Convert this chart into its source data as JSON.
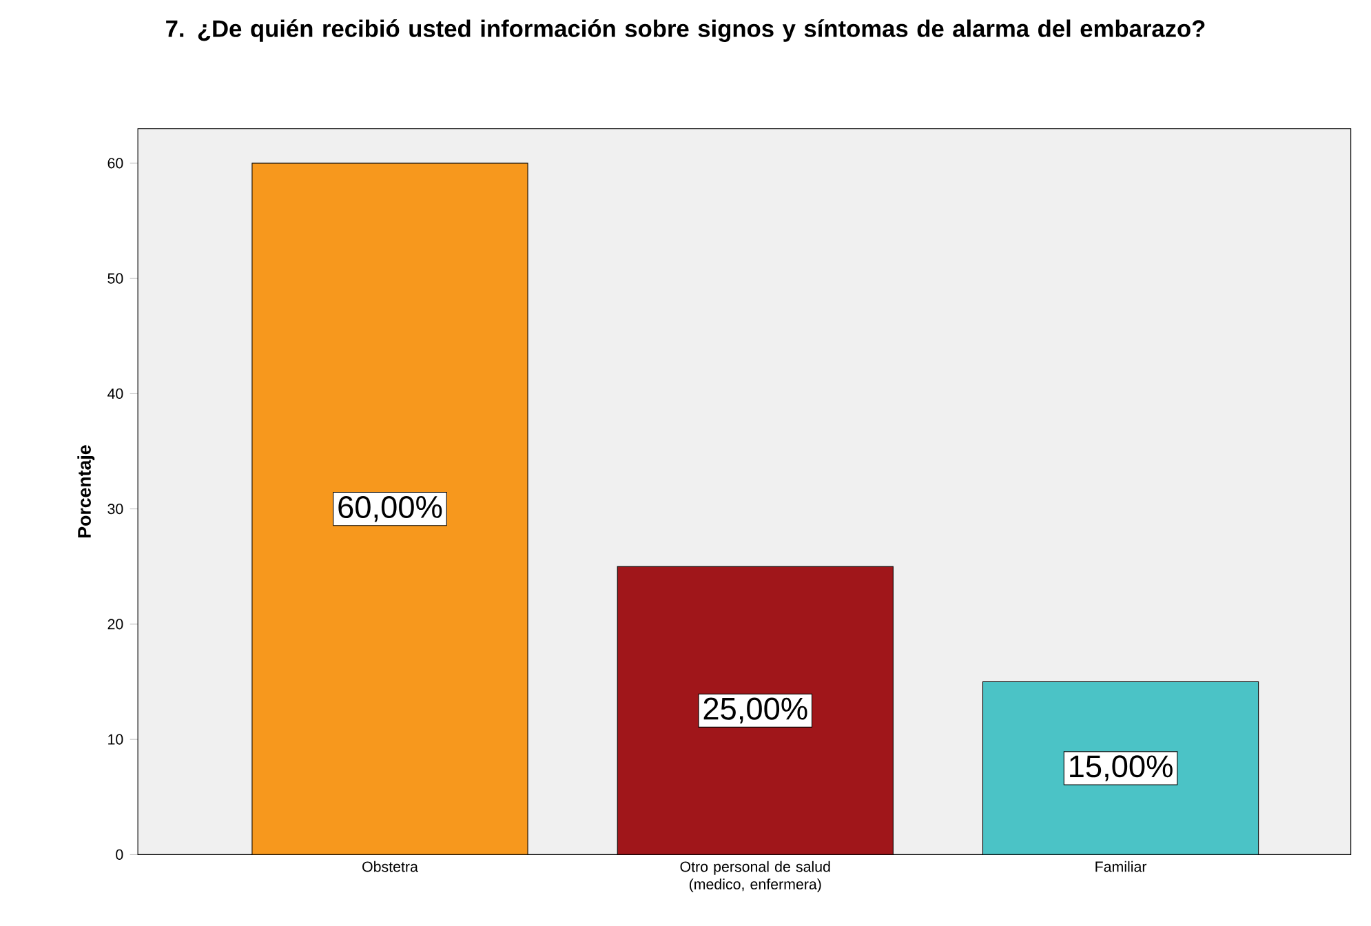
{
  "chart_data": {
    "type": "bar",
    "title": "7. ¿De quién recibió usted información sobre signos y síntomas de alarma del embarazo?",
    "ylabel": "Porcentaje",
    "categories": [
      "Obstetra",
      "Otro personal de salud (medico, enfermera)",
      "Familiar"
    ],
    "values": [
      60,
      25,
      15
    ],
    "colors": [
      "#f7981d",
      "#a0161a",
      "#4bc3c6"
    ],
    "value_labels": [
      "60,00%",
      "25,00%",
      "15,00%"
    ],
    "ylim": [
      0,
      63
    ],
    "yticks": [
      0,
      10,
      20,
      30,
      40,
      50,
      60
    ]
  }
}
